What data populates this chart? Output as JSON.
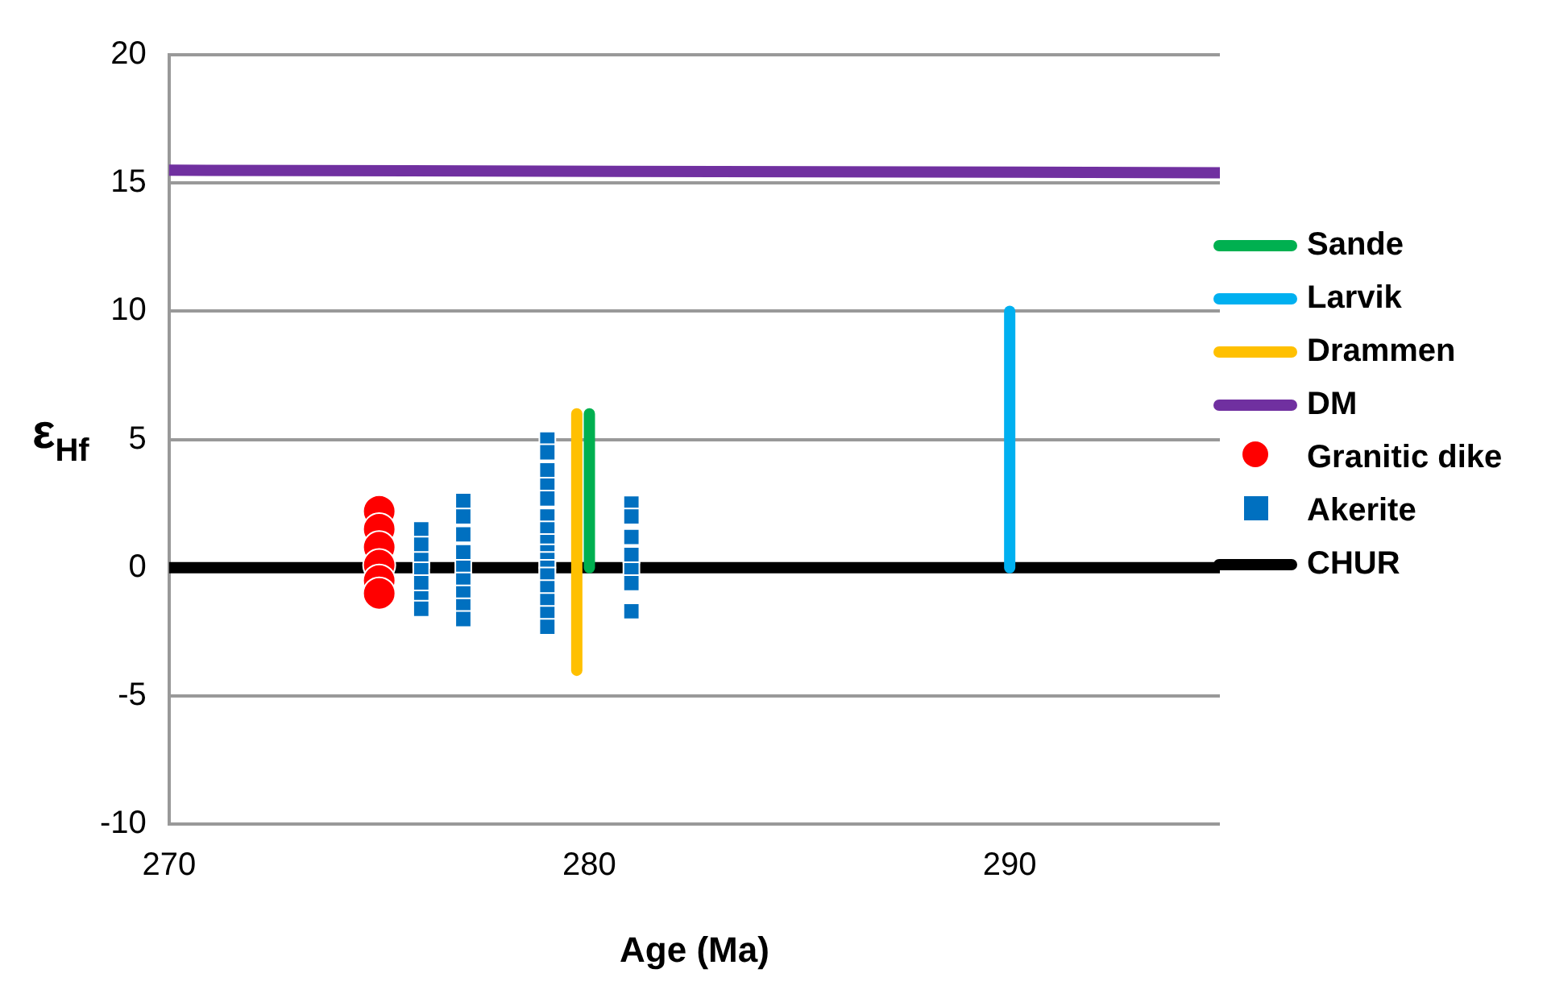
{
  "chart_data": {
    "type": "scatter",
    "xlabel": "Age (Ma)",
    "ylabel": "ε$_{Hf}$",
    "xlim": [
      270,
      295
    ],
    "xticks": [
      270,
      280,
      290
    ],
    "ylim": [
      -10,
      20
    ],
    "yticks": [
      -10,
      -5,
      0,
      5,
      10,
      15,
      20
    ],
    "grid": "y",
    "legend": "right",
    "series": [
      {
        "name": "Sande",
        "type": "line",
        "color": "#00b050",
        "marker": "none",
        "x": [
          280,
          280
        ],
        "values": [
          0,
          6
        ]
      },
      {
        "name": "Larvik",
        "type": "line",
        "color": "#00b0f0",
        "marker": "none",
        "x": [
          290,
          290
        ],
        "values": [
          0,
          10
        ]
      },
      {
        "name": "Drammen",
        "type": "line",
        "color": "#ffc000",
        "marker": "none",
        "x": [
          279.7,
          279.7
        ],
        "values": [
          -4,
          6
        ]
      },
      {
        "name": "DM",
        "type": "line",
        "color": "#7030a0",
        "marker": "none",
        "x": [
          270,
          295
        ],
        "values": [
          15.5,
          15.4
        ]
      },
      {
        "name": "Granitic dike",
        "type": "scatter",
        "color": "#ff0000",
        "marker": "circle",
        "x": [
          275,
          275,
          275,
          275,
          275,
          275
        ],
        "values": [
          2.2,
          1.5,
          0.8,
          0.1,
          -0.5,
          -1.0
        ]
      },
      {
        "name": "Akerite",
        "type": "scatter",
        "color": "#0070c0",
        "marker": "square",
        "x": [
          276,
          276,
          276,
          276,
          276,
          276,
          276,
          277,
          277,
          277,
          277,
          277,
          277,
          277,
          277,
          277,
          279,
          279,
          279,
          279,
          279,
          279,
          279,
          279,
          279,
          279,
          279,
          279,
          279,
          279,
          279,
          279,
          281,
          281,
          281,
          281,
          281,
          281,
          281
        ],
        "values": [
          1.5,
          0.9,
          0.3,
          -0.1,
          -0.6,
          -1.2,
          -1.6,
          2.6,
          2.0,
          1.3,
          0.6,
          0.0,
          -0.5,
          -1.0,
          -1.5,
          -2.0,
          5.0,
          4.5,
          3.8,
          3.2,
          2.7,
          2.0,
          1.5,
          1.0,
          0.6,
          0.3,
          0.0,
          -0.3,
          -0.8,
          -1.3,
          -1.8,
          -2.3,
          2.5,
          2.0,
          1.2,
          0.5,
          -0.1,
          -0.6,
          -1.7
        ]
      },
      {
        "name": "CHUR",
        "type": "line",
        "color": "#000000",
        "marker": "none",
        "x": [
          270,
          295
        ],
        "values": [
          0,
          0
        ]
      }
    ]
  }
}
